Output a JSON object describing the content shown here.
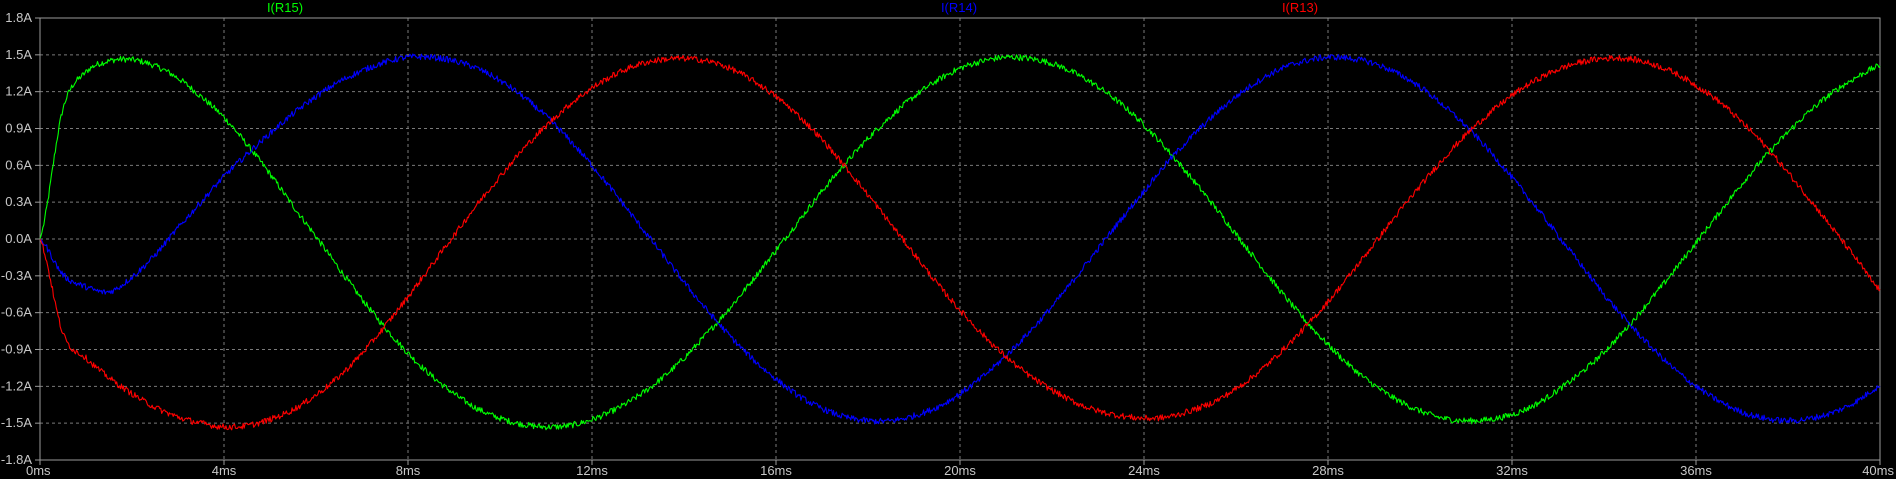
{
  "chart_data": {
    "type": "line",
    "title": "",
    "xlabel": "",
    "ylabel": "",
    "xlim": [
      0,
      40
    ],
    "ylim": [
      -1.8,
      1.8
    ],
    "x_ticks": [
      "0ms",
      "4ms",
      "8ms",
      "12ms",
      "16ms",
      "20ms",
      "24ms",
      "28ms",
      "32ms",
      "36ms",
      "40ms"
    ],
    "y_ticks": [
      "1.8A",
      "1.5A",
      "1.2A",
      "0.9A",
      "0.6A",
      "0.3A",
      "0.0A",
      "-0.3A",
      "-0.6A",
      "-0.9A",
      "-1.2A",
      "-1.5A",
      "-1.8A"
    ],
    "grid": true,
    "legend_position": "top",
    "background": "#000000",
    "grid_color": "#7a7a7a",
    "series": [
      {
        "name": "I(R15)",
        "color": "#00ff00",
        "x": [
          0,
          0.5,
          1,
          1.5,
          2,
          2.5,
          3,
          3.5,
          4,
          4.5,
          5,
          5.5,
          6,
          6.5,
          7,
          7.5,
          8,
          8.5,
          9,
          9.5,
          10,
          10.5,
          11,
          11.5,
          12,
          12.5,
          13,
          13.5,
          14,
          14.5,
          15,
          15.5,
          16,
          16.5,
          17,
          17.5,
          18,
          18.5,
          19,
          19.5,
          20,
          20.5,
          21,
          21.5,
          22,
          22.5,
          23,
          23.5,
          24,
          24.5,
          25,
          25.5,
          26,
          26.5,
          27,
          27.5,
          28,
          28.5,
          29,
          29.5,
          30,
          30.5,
          31,
          31.5,
          32,
          32.5,
          33,
          33.5,
          34,
          34.5,
          35,
          35.5,
          36,
          36.5,
          37,
          37.5,
          38,
          38.5,
          39,
          39.5,
          40
        ],
        "values": [
          0.0,
          1.06,
          1.36,
          1.45,
          1.46,
          1.41,
          1.31,
          1.16,
          0.99,
          0.77,
          0.53,
          0.27,
          0.02,
          -0.24,
          -0.49,
          -0.72,
          -0.93,
          -1.11,
          -1.26,
          -1.38,
          -1.46,
          -1.51,
          -1.53,
          -1.52,
          -1.47,
          -1.39,
          -1.28,
          -1.14,
          -0.97,
          -0.77,
          -0.56,
          -0.33,
          -0.09,
          0.15,
          0.39,
          0.61,
          0.82,
          1.0,
          1.16,
          1.29,
          1.39,
          1.45,
          1.48,
          1.47,
          1.43,
          1.35,
          1.24,
          1.1,
          0.93,
          0.73,
          0.51,
          0.28,
          0.04,
          -0.2,
          -0.44,
          -0.66,
          -0.86,
          -1.04,
          -1.19,
          -1.31,
          -1.4,
          -1.46,
          -1.48,
          -1.47,
          -1.43,
          -1.35,
          -1.23,
          -1.09,
          -0.92,
          -0.72,
          -0.5,
          -0.27,
          -0.03,
          0.21,
          0.45,
          0.67,
          0.87,
          1.05,
          1.2,
          1.32,
          1.41
        ]
      },
      {
        "name": "I(R14)",
        "color": "#0000ff",
        "x": [
          0,
          0.5,
          1,
          1.5,
          2,
          2.5,
          3,
          3.5,
          4,
          4.5,
          5,
          5.5,
          6,
          6.5,
          7,
          7.5,
          8,
          8.5,
          9,
          9.5,
          10,
          10.5,
          11,
          11.5,
          12,
          12.5,
          13,
          13.5,
          14,
          14.5,
          15,
          15.5,
          16,
          16.5,
          17,
          17.5,
          18,
          18.5,
          19,
          19.5,
          20,
          20.5,
          21,
          21.5,
          22,
          22.5,
          23,
          23.5,
          24,
          24.5,
          25,
          25.5,
          26,
          26.5,
          27,
          27.5,
          28,
          28.5,
          29,
          29.5,
          30,
          30.5,
          31,
          31.5,
          32,
          32.5,
          33,
          33.5,
          34,
          34.5,
          35,
          35.5,
          36,
          36.5,
          37,
          37.5,
          38,
          38.5,
          39,
          39.5,
          40
        ],
        "values": [
          0.0,
          -0.29,
          -0.39,
          -0.43,
          -0.31,
          -0.13,
          0.09,
          0.3,
          0.51,
          0.69,
          0.86,
          1.02,
          1.16,
          1.28,
          1.37,
          1.44,
          1.48,
          1.48,
          1.45,
          1.39,
          1.29,
          1.16,
          1.0,
          0.81,
          0.6,
          0.37,
          0.13,
          -0.11,
          -0.35,
          -0.58,
          -0.79,
          -0.98,
          -1.14,
          -1.28,
          -1.38,
          -1.45,
          -1.48,
          -1.48,
          -1.44,
          -1.37,
          -1.26,
          -1.12,
          -0.95,
          -0.76,
          -0.55,
          -0.32,
          -0.08,
          0.16,
          0.39,
          0.62,
          0.82,
          1.0,
          1.16,
          1.29,
          1.39,
          1.45,
          1.48,
          1.47,
          1.43,
          1.35,
          1.24,
          1.09,
          0.92,
          0.72,
          0.5,
          0.27,
          0.03,
          -0.21,
          -0.45,
          -0.67,
          -0.87,
          -1.05,
          -1.2,
          -1.32,
          -1.41,
          -1.46,
          -1.48,
          -1.46,
          -1.41,
          -1.32,
          -1.2
        ]
      },
      {
        "name": "I(R13)",
        "color": "#ff0000",
        "x": [
          0,
          0.5,
          1,
          1.5,
          2,
          2.5,
          3,
          3.5,
          4,
          4.5,
          5,
          5.5,
          6,
          6.5,
          7,
          7.5,
          8,
          8.5,
          9,
          9.5,
          10,
          10.5,
          11,
          11.5,
          12,
          12.5,
          13,
          13.5,
          14,
          14.5,
          15,
          15.5,
          16,
          16.5,
          17,
          17.5,
          18,
          18.5,
          19,
          19.5,
          20,
          20.5,
          21,
          21.5,
          22,
          22.5,
          23,
          23.5,
          24,
          24.5,
          25,
          25.5,
          26,
          26.5,
          27,
          27.5,
          28,
          28.5,
          29,
          29.5,
          30,
          30.5,
          31,
          31.5,
          32,
          32.5,
          33,
          33.5,
          34,
          34.5,
          35,
          35.5,
          36,
          36.5,
          37,
          37.5,
          38,
          38.5,
          39,
          39.5,
          40
        ],
        "values": [
          0.0,
          -0.77,
          -0.97,
          -1.13,
          -1.26,
          -1.37,
          -1.45,
          -1.5,
          -1.53,
          -1.52,
          -1.47,
          -1.39,
          -1.27,
          -1.12,
          -0.93,
          -0.71,
          -0.47,
          -0.22,
          0.03,
          0.28,
          0.51,
          0.73,
          0.92,
          1.09,
          1.23,
          1.34,
          1.42,
          1.46,
          1.47,
          1.45,
          1.39,
          1.29,
          1.16,
          1.0,
          0.81,
          0.59,
          0.36,
          0.12,
          -0.12,
          -0.36,
          -0.58,
          -0.78,
          -0.96,
          -1.11,
          -1.23,
          -1.33,
          -1.4,
          -1.44,
          -1.46,
          -1.45,
          -1.4,
          -1.33,
          -1.22,
          -1.08,
          -0.91,
          -0.72,
          -0.51,
          -0.28,
          -0.04,
          0.2,
          0.43,
          0.65,
          0.85,
          1.02,
          1.17,
          1.29,
          1.38,
          1.44,
          1.47,
          1.47,
          1.43,
          1.36,
          1.25,
          1.12,
          0.95,
          0.76,
          0.54,
          0.31,
          0.07,
          -0.17,
          -0.41
        ]
      }
    ]
  }
}
